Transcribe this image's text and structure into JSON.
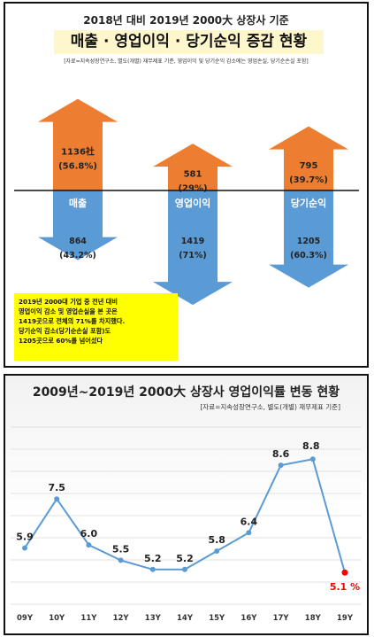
{
  "panel1": {
    "title_line1": "2018년 대비 2019년 2000大 상장사 기준",
    "title_line2": "매출 · 영업이익 · 당기순익 증감 현황",
    "source": "[자료=지속성장연구소, 별도(개별) 재무제표 기준, 영업이익 및 당기순익 감소에는 영업손실, 당기순손실 포함]",
    "note_lines": [
      "2019년 2000대 기업 중 전년 대비",
      "영업이익 감소 및 영업손실을 본 곳은",
      "1419곳으로 전체의 71%를 차지했다.",
      "당기순익 감소(당기순손실 포함)도",
      "1205곳으로 60%를 넘어섰다"
    ],
    "colors": {
      "increase": "#ed7d31",
      "decrease": "#5b9bd5"
    }
  },
  "chart_data": [
    {
      "type": "bar",
      "categories": [
        "매출",
        "영업이익",
        "당기순익"
      ],
      "series": [
        {
          "values": [
            1136,
            581,
            795
          ],
          "labels": [
            "1136社",
            "581",
            "795"
          ],
          "percent_labels": [
            "(56.8%)",
            "(29%)",
            "(39.7%)"
          ],
          "percent": [
            56.8,
            29,
            39.7
          ]
        },
        {
          "values": [
            864,
            1419,
            1205
          ],
          "labels": [
            "864",
            "1419",
            "1205"
          ],
          "percent_labels": [
            "(43.2%)",
            "(71%)",
            "(60.3%)"
          ],
          "percent": [
            43.2,
            71,
            60.3
          ]
        }
      ]
    },
    {
      "type": "line",
      "title": "2009년~2019년 2000大 상장사 영업이익률 변동 현황",
      "source": "[자료=지속성장연구소, 별도(개별) 재무제표 기준]",
      "categories": [
        "09Y",
        "10Y",
        "11Y",
        "12Y",
        "13Y",
        "14Y",
        "15Y",
        "16Y",
        "17Y",
        "18Y",
        "19Y"
      ],
      "values": [
        5.9,
        7.5,
        6.0,
        5.5,
        5.2,
        5.2,
        5.8,
        6.4,
        8.6,
        8.8,
        5.1
      ],
      "value_labels": [
        "5.9",
        "7.5",
        "6.0",
        "5.5",
        "5.2",
        "5.2",
        "5.8",
        "6.4",
        "8.6",
        "8.8",
        "5.1 %"
      ],
      "colors": {
        "line": "#5b9bd5",
        "highlight": "#ff0000"
      },
      "ylim": [
        4.5,
        9.5
      ],
      "grid": true
    }
  ]
}
